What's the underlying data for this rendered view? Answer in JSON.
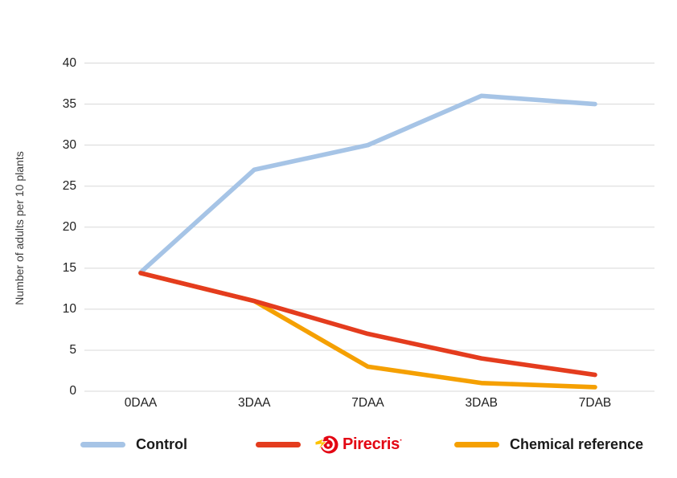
{
  "chart_data": {
    "type": "line",
    "title": "",
    "ylabel": "Number of adults per 10 plants",
    "xlabel": "",
    "categories": [
      "0DAA",
      "3DAA",
      "7DAA",
      "3DAB",
      "7DAB"
    ],
    "series": [
      {
        "name": "Control",
        "color": "#a6c4e6",
        "values": [
          14.5,
          27,
          30,
          36,
          35
        ]
      },
      {
        "name": "Chemical reference",
        "color": "#f5a002",
        "values": [
          14.4,
          11,
          3,
          1,
          0.5
        ]
      },
      {
        "name": "Pirecris",
        "color": "#e43c1e",
        "values": [
          14.4,
          11,
          7,
          4,
          2
        ]
      }
    ],
    "ylim": [
      0,
      40
    ],
    "ytick_step": 5,
    "yticks": [
      0,
      5,
      10,
      15,
      20,
      25,
      30,
      35,
      40
    ],
    "grid": "horizontal",
    "gridline_color": "#d8d8d8",
    "legend_position": "bottom"
  },
  "legend": {
    "items": [
      {
        "label": "Control",
        "color": "#a6c4e6"
      },
      {
        "label": "Pirecris",
        "color": "#e43c1e",
        "reg_mark": "·",
        "logo": "pirecris-target-lightning"
      },
      {
        "label": "Chemical reference",
        "color": "#f5a002"
      }
    ]
  },
  "colors": {
    "background": "#ffffff",
    "grid": "#d8d8d8",
    "axis_text": "#212121",
    "y_title": "#3c3c3c",
    "legend_text": "#1a1a1a",
    "logo_red": "#e30613",
    "logo_yellow": "#fdc300"
  }
}
